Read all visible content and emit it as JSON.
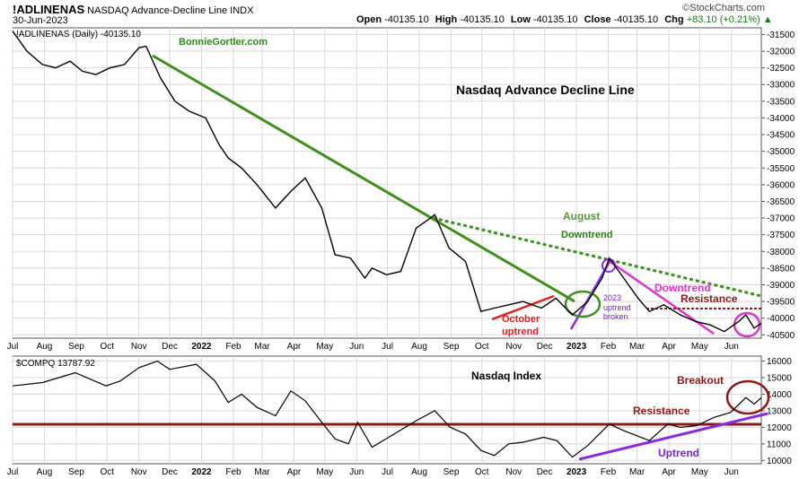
{
  "header": {
    "symbol": "!ADLINENAS",
    "description": "NASDAQ Advance-Decline Line INDX",
    "date": "30-Jun-2023",
    "open_label": "Open",
    "open_value": "-40135.10",
    "high_label": "High",
    "high_value": "-40135.10",
    "low_label": "Low",
    "low_value": "-40135.10",
    "close_label": "Close",
    "close_value": "-40135.10",
    "chg_label": "Chg",
    "chg_value": "+83.10 (+0.21%)",
    "chg_arrow": "▲",
    "brand": "©StockCharts.com",
    "brand_icon": "stockcharts-logo-icon"
  },
  "chart_data": [
    {
      "type": "line",
      "panel": "top",
      "legend": "!ADLINENAS (Daily) -40135.10",
      "watermark": "BonnieGortler.com",
      "title": "Nasdaq Advance Decline Line",
      "ylim": [
        -40600,
        -31300
      ],
      "yticks": [
        -31500,
        -32000,
        -32500,
        -33000,
        -33500,
        -34000,
        -34500,
        -35000,
        -35500,
        -36000,
        -36500,
        -37000,
        -37500,
        -38000,
        -38500,
        -39000,
        -39500,
        -40000,
        -40500
      ],
      "x_labels": [
        "Jul",
        "Aug",
        "Sep",
        "Oct",
        "Nov",
        "Dec",
        "2022",
        "Feb",
        "Mar",
        "Apr",
        "May",
        "Jun",
        "Jul",
        "Aug",
        "Sep",
        "Oct",
        "Nov",
        "Dec",
        "2023",
        "Feb",
        "Mar",
        "Apr",
        "May",
        "Jun"
      ],
      "x_bold": [
        "2022",
        "2023"
      ],
      "x_start": "2021-07-01",
      "x_end": "2023-06-30",
      "grid": true,
      "series": [
        {
          "color": "#000000",
          "dates": [
            "2021-07-01",
            "2021-07-15",
            "2021-07-30",
            "2021-08-12",
            "2021-08-26",
            "2021-09-07",
            "2021-09-20",
            "2021-10-04",
            "2021-10-18",
            "2021-11-01",
            "2021-11-08",
            "2021-11-22",
            "2021-12-06",
            "2021-12-20",
            "2022-01-05",
            "2022-01-18",
            "2022-01-27",
            "2022-02-09",
            "2022-02-24",
            "2022-03-14",
            "2022-03-29",
            "2022-04-12",
            "2022-04-28",
            "2022-05-11",
            "2022-05-26",
            "2022-06-09",
            "2022-06-16",
            "2022-06-30",
            "2022-07-14",
            "2022-07-29",
            "2022-08-12",
            "2022-08-16",
            "2022-08-30",
            "2022-09-15",
            "2022-09-30",
            "2022-10-13",
            "2022-10-27",
            "2022-11-10",
            "2022-11-28",
            "2022-12-12",
            "2022-12-28",
            "2023-01-12",
            "2023-01-26",
            "2023-02-02",
            "2023-02-16",
            "2023-03-02",
            "2023-03-13",
            "2023-03-27",
            "2023-04-12",
            "2023-04-27",
            "2023-05-11",
            "2023-05-25",
            "2023-06-08",
            "2023-06-15",
            "2023-06-23",
            "2023-06-30"
          ],
          "values": [
            -31400,
            -32000,
            -32400,
            -32500,
            -32300,
            -32600,
            -32700,
            -32500,
            -32400,
            -31900,
            -31850,
            -32800,
            -33500,
            -33800,
            -34000,
            -34800,
            -35200,
            -35500,
            -36000,
            -36700,
            -36200,
            -35800,
            -36700,
            -38100,
            -38200,
            -38800,
            -38500,
            -38700,
            -38600,
            -37300,
            -37000,
            -36900,
            -37900,
            -38300,
            -39800,
            -39700,
            -39600,
            -39500,
            -39700,
            -39400,
            -39900,
            -39500,
            -38800,
            -38200,
            -38800,
            -39400,
            -39800,
            -39600,
            -39900,
            -40100,
            -40200,
            -40400,
            -40100,
            -39900,
            -40300,
            -40150
          ]
        }
      ],
      "annotations": [
        {
          "text": "August",
          "color": "#5a9a3a"
        },
        {
          "text": "Downtrend",
          "color": "#2e7d1a"
        },
        {
          "text": "Downtrend",
          "color": "#e033cc"
        },
        {
          "text": "Resistance",
          "color": "#8b1a1a"
        },
        {
          "text": "October",
          "color": "#e02020"
        },
        {
          "text": "uptrend",
          "color": "#e02020"
        },
        {
          "text": "2023",
          "color": "#7a22cc"
        },
        {
          "text": "uptrend",
          "color": "#7a22cc"
        },
        {
          "text": "broken",
          "color": "#7a22cc"
        }
      ]
    },
    {
      "type": "line",
      "panel": "bottom",
      "legend": "$COMPQ 13787.92",
      "title": "Nasdaq Index",
      "ylim": [
        9800,
        16300
      ],
      "yticks": [
        10000,
        11000,
        12000,
        13000,
        14000,
        15000,
        16000
      ],
      "x_labels": [
        "Jul",
        "Aug",
        "Sep",
        "Oct",
        "Nov",
        "Dec",
        "2022",
        "Feb",
        "Mar",
        "Apr",
        "May",
        "Jun",
        "Jul",
        "Aug",
        "Sep",
        "Oct",
        "Nov",
        "Dec",
        "2023",
        "Feb",
        "Mar",
        "Apr",
        "May",
        "Jun"
      ],
      "x_bold": [
        "2022",
        "2023"
      ],
      "x_start": "2021-07-01",
      "x_end": "2023-06-30",
      "grid": true,
      "series": [
        {
          "color": "#000000",
          "dates": [
            "2021-07-01",
            "2021-07-30",
            "2021-08-31",
            "2021-09-30",
            "2021-10-14",
            "2021-11-01",
            "2021-11-19",
            "2021-12-01",
            "2021-12-27",
            "2022-01-14",
            "2022-01-27",
            "2022-02-09",
            "2022-02-24",
            "2022-03-14",
            "2022-03-29",
            "2022-04-12",
            "2022-04-28",
            "2022-05-11",
            "2022-05-24",
            "2022-06-02",
            "2022-06-16",
            "2022-07-05",
            "2022-07-29",
            "2022-08-16",
            "2022-08-31",
            "2022-09-15",
            "2022-09-30",
            "2022-10-13",
            "2022-10-27",
            "2022-11-10",
            "2022-11-30",
            "2022-12-13",
            "2022-12-28",
            "2023-01-12",
            "2023-02-02",
            "2023-02-16",
            "2023-03-13",
            "2023-03-31",
            "2023-04-12",
            "2023-04-28",
            "2023-05-15",
            "2023-05-31",
            "2023-06-15",
            "2023-06-23",
            "2023-06-30"
          ],
          "values": [
            14500,
            14700,
            15300,
            14500,
            14800,
            15600,
            16000,
            15500,
            15800,
            14800,
            13500,
            14000,
            13200,
            12700,
            14200,
            13600,
            12300,
            11300,
            11000,
            12300,
            10800,
            11500,
            12400,
            13000,
            12000,
            11600,
            10600,
            10300,
            11000,
            11100,
            11400,
            11200,
            10200,
            10900,
            12200,
            11800,
            11200,
            12200,
            12000,
            12100,
            12600,
            12900,
            13800,
            13400,
            13790
          ]
        }
      ],
      "annotations": [
        {
          "text": "Breakout",
          "color": "#8b1a1a"
        },
        {
          "text": "Resistance",
          "color": "#8b1a1a"
        },
        {
          "text": "Uptrend",
          "color": "#7a22cc"
        }
      ]
    }
  ]
}
